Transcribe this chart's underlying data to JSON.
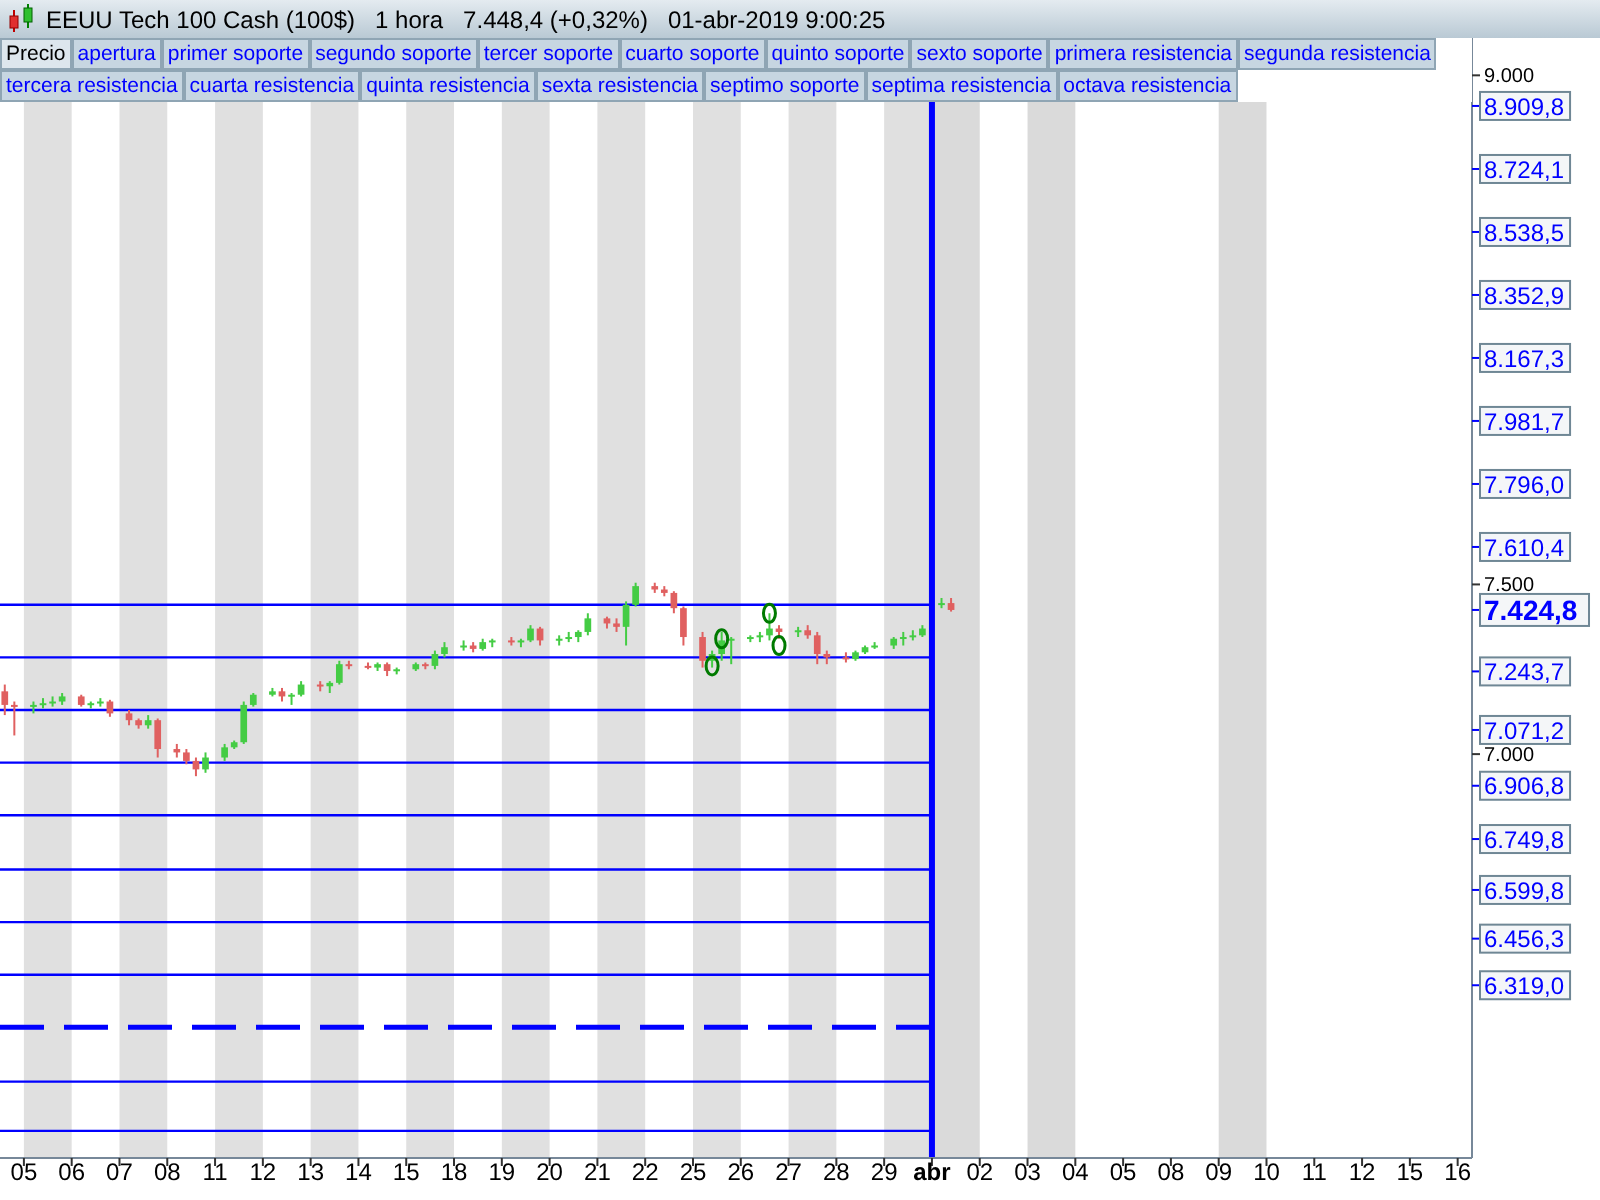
{
  "chart_data": {
    "type": "candlestick",
    "title": "EEUU Tech 100 Cash (100$)   1 hora   7.448,4 (+0,32%)   01-abr-2019 9:00:25",
    "annotations": [
      "Precio",
      "apertura",
      "primer soporte",
      "segundo soporte",
      "tercer soporte",
      "cuarto soporte",
      "quinto soporte",
      "sexto soporte",
      "primera resistencia",
      "segunda resistencia",
      "tercera resistencia",
      "cuarta resistencia",
      "quinta resistencia",
      "sexta resistencia",
      "septimo soporte",
      "septima resistencia",
      "octava resistencia"
    ],
    "categories": [
      null,
      null,
      "05",
      null,
      null,
      null,
      null,
      "06",
      null,
      null,
      null,
      null,
      "07",
      null,
      null,
      null,
      null,
      "08",
      null,
      null,
      null,
      null,
      "11",
      null,
      null,
      null,
      null,
      "12",
      null,
      null,
      null,
      null,
      "13",
      null,
      null,
      null,
      null,
      "14",
      null,
      null,
      null,
      null,
      "15",
      null,
      null,
      null,
      null,
      "18",
      null,
      null,
      null,
      null,
      "19",
      null,
      null,
      null,
      null,
      "20",
      null,
      null,
      null,
      null,
      "21",
      null,
      null,
      null,
      null,
      "22",
      null,
      null,
      null,
      null,
      "25",
      null,
      null,
      null,
      null,
      "26",
      null,
      null,
      null,
      null,
      "27",
      null,
      null,
      null,
      null,
      "28",
      null,
      null,
      null,
      null,
      "29",
      null,
      null,
      null,
      null,
      "abr",
      null,
      null,
      null,
      null,
      "02",
      null,
      null,
      null,
      null,
      "03",
      null,
      null,
      null,
      null,
      "04",
      null,
      null,
      null,
      null,
      "05",
      null,
      null,
      null,
      null,
      "08",
      null,
      null,
      null,
      null,
      "09",
      null,
      null,
      null,
      null,
      "10",
      null,
      null,
      null,
      null,
      "11",
      null,
      null,
      null,
      null,
      "12",
      null,
      null,
      null,
      null,
      "15",
      null,
      null,
      null,
      null,
      "16",
      null
    ],
    "ohlc": [
      [
        7185,
        7205,
        7115,
        7145
      ],
      [
        7145,
        7155,
        7055,
        7140
      ],
      null,
      [
        7140,
        7155,
        7120,
        7145
      ],
      [
        7145,
        7165,
        7135,
        7150
      ],
      [
        7150,
        7170,
        7140,
        7155
      ],
      [
        7155,
        7180,
        7145,
        7170
      ],
      null,
      [
        7170,
        7175,
        7140,
        7145
      ],
      [
        7145,
        7155,
        7135,
        7150
      ],
      [
        7150,
        7165,
        7140,
        7155
      ],
      [
        7155,
        7160,
        7110,
        7120
      ],
      null,
      [
        7120,
        7130,
        7085,
        7100
      ],
      [
        7100,
        7105,
        7075,
        7085
      ],
      [
        7085,
        7115,
        7075,
        7100
      ],
      [
        7100,
        7105,
        6990,
        7015
      ],
      null,
      [
        7015,
        7030,
        6990,
        7005
      ],
      [
        7005,
        7015,
        6970,
        6980
      ],
      [
        6980,
        6990,
        6935,
        6955
      ],
      [
        6955,
        7005,
        6945,
        6990
      ],
      null,
      [
        6990,
        7030,
        6980,
        7020
      ],
      [
        7020,
        7040,
        7015,
        7035
      ],
      [
        7035,
        7155,
        7030,
        7145
      ],
      [
        7145,
        7180,
        7140,
        7175
      ],
      null,
      [
        7175,
        7195,
        7170,
        7185
      ],
      [
        7185,
        7195,
        7155,
        7170
      ],
      [
        7170,
        7180,
        7145,
        7175
      ],
      [
        7175,
        7215,
        7170,
        7205
      ],
      null,
      [
        7205,
        7215,
        7185,
        7200
      ],
      [
        7200,
        7215,
        7180,
        7210
      ],
      [
        7210,
        7275,
        7205,
        7265
      ],
      [
        7265,
        7275,
        7250,
        7260
      ],
      null,
      [
        7260,
        7270,
        7250,
        7255
      ],
      [
        7255,
        7270,
        7245,
        7265
      ],
      [
        7265,
        7270,
        7230,
        7245
      ],
      [
        7245,
        7255,
        7235,
        7250
      ],
      null,
      [
        7250,
        7270,
        7245,
        7265
      ],
      [
        7265,
        7270,
        7250,
        7260
      ],
      [
        7260,
        7305,
        7250,
        7295
      ],
      [
        7295,
        7330,
        7285,
        7315
      ],
      null,
      [
        7315,
        7335,
        7305,
        7320
      ],
      [
        7320,
        7330,
        7300,
        7310
      ],
      [
        7310,
        7340,
        7305,
        7330
      ],
      [
        7330,
        7340,
        7315,
        7335
      ],
      null,
      [
        7335,
        7345,
        7320,
        7330
      ],
      [
        7330,
        7340,
        7315,
        7335
      ],
      [
        7335,
        7380,
        7330,
        7370
      ],
      [
        7370,
        7375,
        7320,
        7335
      ],
      null,
      [
        7335,
        7350,
        7320,
        7340
      ],
      [
        7340,
        7360,
        7330,
        7345
      ],
      [
        7345,
        7365,
        7330,
        7360
      ],
      [
        7360,
        7415,
        7350,
        7400
      ],
      null,
      [
        7400,
        7405,
        7370,
        7385
      ],
      [
        7385,
        7400,
        7360,
        7375
      ],
      [
        7375,
        7450,
        7320,
        7440
      ],
      [
        7440,
        7505,
        7435,
        7495
      ],
      null,
      [
        7495,
        7505,
        7475,
        7485
      ],
      [
        7485,
        7495,
        7465,
        7475
      ],
      [
        7475,
        7480,
        7415,
        7430
      ],
      [
        7430,
        7435,
        7320,
        7345
      ],
      null,
      [
        7345,
        7360,
        7255,
        7275
      ],
      [
        7275,
        7305,
        7255,
        7295
      ],
      [
        7295,
        7360,
        7275,
        7335
      ],
      [
        7335,
        7345,
        7265,
        7340
      ],
      null,
      [
        7340,
        7350,
        7330,
        7345
      ],
      [
        7345,
        7360,
        7330,
        7350
      ],
      [
        7350,
        7415,
        7335,
        7370
      ],
      [
        7370,
        7380,
        7340,
        7360
      ],
      null,
      [
        7360,
        7375,
        7345,
        7365
      ],
      [
        7365,
        7380,
        7340,
        7350
      ],
      [
        7350,
        7360,
        7265,
        7295
      ],
      [
        7295,
        7305,
        7265,
        7285
      ],
      null,
      [
        7285,
        7300,
        7270,
        7280
      ],
      [
        7280,
        7305,
        7275,
        7300
      ],
      [
        7300,
        7320,
        7295,
        7315
      ],
      [
        7315,
        7330,
        7310,
        7320
      ],
      null,
      [
        7320,
        7345,
        7310,
        7340
      ],
      [
        7340,
        7360,
        7320,
        7345
      ],
      [
        7345,
        7365,
        7335,
        7350
      ],
      [
        7350,
        7380,
        7345,
        7370
      ],
      null,
      [
        7440,
        7460,
        7430,
        7445
      ],
      [
        7445,
        7460,
        7420,
        7424.8
      ],
      null,
      null,
      null,
      null,
      null,
      null,
      null,
      null,
      null,
      null,
      null,
      null,
      null,
      null,
      null,
      null,
      null,
      null,
      null,
      null,
      null,
      null,
      null,
      null,
      null,
      null,
      null,
      null,
      null,
      null,
      null,
      null,
      null,
      null,
      null,
      null,
      null,
      null,
      null,
      null,
      null,
      null,
      null,
      null,
      null,
      null,
      null,
      null,
      null,
      null,
      null,
      null,
      null,
      null
    ],
    "colors": [
      "#e06060",
      "#e06060",
      null,
      "#44cc44",
      "#44cc44",
      "#44cc44",
      "#44cc44",
      null,
      "#e06060",
      "#44cc44",
      "#44cc44",
      "#e06060",
      null,
      "#e06060",
      "#e06060",
      "#44cc44",
      "#e06060",
      null,
      "#e06060",
      "#e06060",
      "#e06060",
      "#44cc44",
      null,
      "#44cc44",
      "#44cc44",
      "#44cc44",
      "#44cc44",
      null,
      "#44cc44",
      "#e06060",
      "#44cc44",
      "#44cc44",
      null,
      "#e06060",
      "#44cc44",
      "#44cc44",
      "#e06060",
      null,
      "#e06060",
      "#44cc44",
      "#e06060",
      "#44cc44",
      null,
      "#44cc44",
      "#e06060",
      "#44cc44",
      "#44cc44",
      null,
      "#44cc44",
      "#e06060",
      "#44cc44",
      "#44cc44",
      null,
      "#e06060",
      "#44cc44",
      "#44cc44",
      "#e06060",
      null,
      "#44cc44",
      "#44cc44",
      "#44cc44",
      "#44cc44",
      null,
      "#e06060",
      "#e06060",
      "#44cc44",
      "#44cc44",
      null,
      "#e06060",
      "#e06060",
      "#e06060",
      "#e06060",
      null,
      "#e06060",
      "#44cc44",
      "#44cc44",
      "#44cc44",
      null,
      "#44cc44",
      "#44cc44",
      "#44cc44",
      "#e06060",
      null,
      "#44cc44",
      "#e06060",
      "#e06060",
      "#e06060",
      null,
      "#e06060",
      "#44cc44",
      "#44cc44",
      "#44cc44",
      null,
      "#44cc44",
      "#44cc44",
      "#44cc44",
      "#44cc44",
      null,
      "#44cc44",
      "#e06060",
      null,
      null,
      null,
      null,
      null,
      null,
      null,
      null,
      null,
      null,
      null,
      null,
      null,
      null,
      null,
      null,
      null,
      null,
      null,
      null,
      null,
      null,
      null,
      null,
      null,
      null,
      null,
      null,
      null,
      null,
      null,
      null,
      null,
      null,
      null,
      null,
      null,
      null,
      null,
      null,
      null,
      null,
      null,
      null,
      null,
      null,
      null,
      null,
      null,
      null,
      null,
      null,
      null,
      null
    ],
    "series": [
      {
        "type": "scatter",
        "color": "#007a00",
        "values": [
          null,
          null,
          null,
          null,
          null,
          null,
          null,
          null,
          null,
          null,
          null,
          null,
          null,
          null,
          null,
          null,
          null,
          null,
          null,
          null,
          null,
          null,
          null,
          null,
          null,
          null,
          null,
          null,
          null,
          null,
          null,
          null,
          null,
          null,
          null,
          null,
          null,
          null,
          null,
          null,
          null,
          null,
          null,
          null,
          null,
          null,
          null,
          null,
          null,
          null,
          null,
          null,
          null,
          null,
          null,
          null,
          null,
          null,
          null,
          null,
          null,
          null,
          null,
          null,
          null,
          null,
          null,
          null,
          null,
          null,
          null,
          null,
          null,
          null,
          7260,
          7340,
          null,
          null,
          null,
          null,
          7415,
          7320,
          null,
          null,
          null,
          null,
          null,
          null,
          null,
          null,
          null,
          null,
          null,
          null,
          null,
          null,
          null,
          null,
          null,
          null,
          null,
          null,
          null,
          null,
          null,
          null,
          null,
          null,
          null,
          null,
          null,
          null,
          null,
          null,
          null,
          null,
          null,
          null,
          null,
          null,
          null,
          null,
          null,
          null,
          null,
          null,
          null,
          null,
          null,
          null,
          null,
          null,
          null,
          null,
          null,
          null,
          null,
          null,
          null,
          null,
          null,
          null,
          null,
          null,
          null,
          null,
          null,
          null,
          null,
          null,
          null,
          null,
          null,
          null
        ]
      }
    ],
    "marker": "circle",
    "ylim": [
      5810,
      9110
    ],
    "yticks": [
      {
        "value": 9000,
        "label": "9.000"
      },
      {
        "value": 8909.8,
        "label": "8.909,8"
      },
      {
        "value": 8724.1,
        "label": "8.724,1"
      },
      {
        "value": 8538.5,
        "label": "8.538,5"
      },
      {
        "value": 8352.9,
        "label": "8.352,9"
      },
      {
        "value": 8167.3,
        "label": "8.167,3"
      },
      {
        "value": 7981.7,
        "label": "7.981,7"
      },
      {
        "value": 7796.0,
        "label": "7.796,0"
      },
      {
        "value": 7610.4,
        "label": "7.610,4"
      },
      {
        "value": 7500,
        "label": "7.500"
      },
      {
        "value": 7424.8,
        "label": "7.424,8"
      },
      {
        "value": 7243.7,
        "label": "7.243,7"
      },
      {
        "value": 7071.2,
        "label": "7.071,2"
      },
      {
        "value": 7000,
        "label": "7.000"
      },
      {
        "value": 6906.8,
        "label": "6.906,8"
      },
      {
        "value": 6749.8,
        "label": "6.749,8"
      },
      {
        "value": 6599.8,
        "label": "6.599,8"
      },
      {
        "value": 6456.3,
        "label": "6.456,3"
      },
      {
        "value": 6319.0,
        "label": "6.319,0"
      }
    ],
    "ref_lines": [
      {
        "axis": "y",
        "value": 7440,
        "color": "#0000ff"
      },
      {
        "axis": "y",
        "value": 7285,
        "color": "#0000ff"
      },
      {
        "axis": "y",
        "value": 7130,
        "color": "#0000ff"
      },
      {
        "axis": "y",
        "value": 6975,
        "color": "#0000ff"
      },
      {
        "axis": "y",
        "value": 6820,
        "color": "#0000ff"
      },
      {
        "axis": "y",
        "value": 6660,
        "color": "#0000ff"
      },
      {
        "axis": "y",
        "value": 6505,
        "color": "#0000ff"
      },
      {
        "axis": "y",
        "value": 6350,
        "color": "#0000ff"
      },
      {
        "axis": "y",
        "value": 6195,
        "color": "#0000ff",
        "line_style": "dashed"
      },
      {
        "axis": "y",
        "value": 6035,
        "color": "#0000ff"
      },
      {
        "axis": "y",
        "value": 5890,
        "color": "#0000ff"
      },
      {
        "axis": "x",
        "value": "abr",
        "color": "#0000ff"
      }
    ],
    "bands": [
      {
        "axis": "x",
        "from": "05",
        "to": "06",
        "color": "#e0e0e0"
      },
      {
        "axis": "x",
        "from": "07",
        "to": "08",
        "color": "#e0e0e0"
      },
      {
        "axis": "x",
        "from": "11",
        "to": "12",
        "color": "#e0e0e0"
      },
      {
        "axis": "x",
        "from": "13",
        "to": "14",
        "color": "#e0e0e0"
      },
      {
        "axis": "x",
        "from": "15",
        "to": "18",
        "color": "#e0e0e0"
      },
      {
        "axis": "x",
        "from": "19",
        "to": "20",
        "color": "#e0e0e0"
      },
      {
        "axis": "x",
        "from": "21",
        "to": "22",
        "color": "#e0e0e0"
      },
      {
        "axis": "x",
        "from": "25",
        "to": "26",
        "color": "#e0e0e0"
      },
      {
        "axis": "x",
        "from": "27",
        "to": "28",
        "color": "#e0e0e0"
      },
      {
        "axis": "x",
        "from": "29",
        "to": "abr",
        "color": "#e0e0e0"
      },
      {
        "axis": "x",
        "from": "abr",
        "to": "02",
        "color": "#dadada"
      },
      {
        "axis": "x",
        "from": "03",
        "to": "04",
        "color": "#dadada"
      },
      {
        "axis": "x",
        "from": "09",
        "to": "10",
        "color": "#dadada"
      }
    ]
  }
}
